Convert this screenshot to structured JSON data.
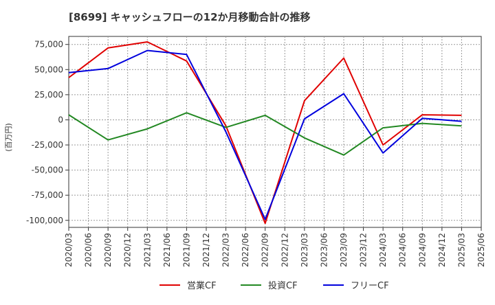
{
  "chart_data": {
    "type": "line",
    "title": "[8699]  キャッシュフローの12か月移動合計の推移",
    "ylabel": "(百万円)",
    "xlabel": "",
    "ylim": [
      -107000,
      83000
    ],
    "yticks": [
      75000,
      50000,
      25000,
      0,
      -25000,
      -50000,
      -75000,
      -100000
    ],
    "ytick_labels": [
      "75,000",
      "50,000",
      "25,000",
      "0",
      "-25,000",
      "-50,000",
      "-75,000",
      "-100,000"
    ],
    "categories": [
      "2020/03",
      "2020/06",
      "2020/09",
      "2020/12",
      "2021/03",
      "2021/06",
      "2021/09",
      "2021/12",
      "2022/03",
      "2022/06",
      "2022/09",
      "2022/12",
      "2023/03",
      "2023/06",
      "2023/09",
      "2023/12",
      "2024/03",
      "2024/06",
      "2024/09",
      "2024/12",
      "2025/03",
      "2025/06"
    ],
    "grid": true,
    "legend_position": "bottom",
    "series": [
      {
        "name": "営業CF",
        "color": "#e00000",
        "points": [
          [
            "2020/03",
            42000
          ],
          [
            "2020/09",
            71500
          ],
          [
            "2021/03",
            77500
          ],
          [
            "2021/09",
            58500
          ],
          [
            "2022/03",
            -6000
          ],
          [
            "2022/09",
            -103000
          ],
          [
            "2023/03",
            19000
          ],
          [
            "2023/09",
            61500
          ],
          [
            "2024/03",
            -25000
          ],
          [
            "2024/09",
            5000
          ],
          [
            "2025/03",
            4500
          ]
        ]
      },
      {
        "name": "投資CF",
        "color": "#228822",
        "points": [
          [
            "2020/03",
            5000
          ],
          [
            "2020/09",
            -20000
          ],
          [
            "2021/03",
            -9000
          ],
          [
            "2021/09",
            7000
          ],
          [
            "2022/03",
            -7500
          ],
          [
            "2022/09",
            4500
          ],
          [
            "2023/03",
            -18000
          ],
          [
            "2023/09",
            -35000
          ],
          [
            "2024/03",
            -8000
          ],
          [
            "2024/09",
            -3500
          ],
          [
            "2025/03",
            -6000
          ]
        ]
      },
      {
        "name": "フリーCF",
        "color": "#0000dd",
        "points": [
          [
            "2020/03",
            47000
          ],
          [
            "2020/09",
            51000
          ],
          [
            "2021/03",
            69000
          ],
          [
            "2021/09",
            65000
          ],
          [
            "2022/03",
            -12000
          ],
          [
            "2022/09",
            -99000
          ],
          [
            "2023/03",
            1000
          ],
          [
            "2023/09",
            26000
          ],
          [
            "2024/03",
            -33000
          ],
          [
            "2024/09",
            1500
          ],
          [
            "2025/03",
            -1500
          ]
        ]
      }
    ]
  }
}
